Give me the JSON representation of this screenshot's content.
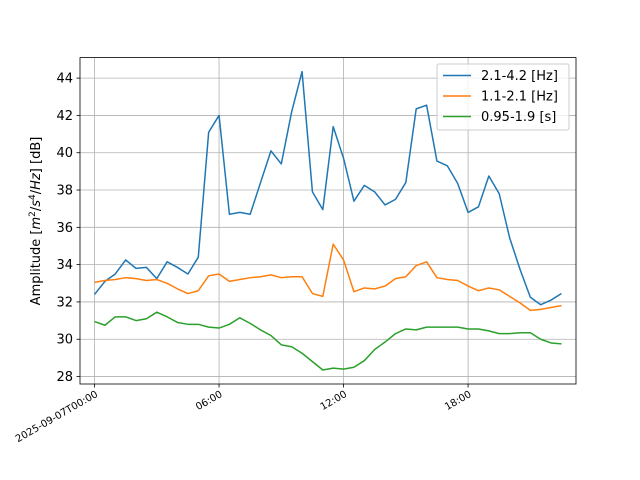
{
  "chart_data": {
    "type": "line",
    "title": "",
    "xlabel": "",
    "ylabel_parts": [
      "Amplitude [",
      "m",
      "2",
      "/",
      "s",
      "4",
      "/",
      "Hz",
      "] [dB]"
    ],
    "ylim": [
      27.6,
      45.1
    ],
    "xlim_hours": [
      -0.7,
      23.2
    ],
    "yticks": [
      28,
      30,
      32,
      34,
      36,
      38,
      40,
      42,
      44
    ],
    "xticks": [
      {
        "hour": 0,
        "label": "2025-09-07T00:00"
      },
      {
        "hour": 6,
        "label": "06:00"
      },
      {
        "hour": 12,
        "label": "12:00"
      },
      {
        "hour": 18,
        "label": "18:00"
      }
    ],
    "grid": true,
    "legend_position": "top-right",
    "x_hours": [
      0,
      0.5,
      1,
      1.5,
      2,
      2.5,
      3,
      3.5,
      4,
      4.5,
      5,
      5.5,
      6,
      6.5,
      7,
      7.5,
      8,
      8.5,
      9,
      9.5,
      10,
      10.5,
      11,
      11.5,
      12,
      12.5,
      13,
      13.5,
      14,
      14.5,
      15,
      15.5,
      16,
      16.5,
      17,
      17.5,
      18,
      18.5,
      19,
      19.5,
      20,
      20.5,
      21,
      21.5,
      22,
      22.5
    ],
    "series": [
      {
        "name": "2.1-4.2 [Hz]",
        "color": "#1f77b4",
        "values": [
          32.4,
          33.1,
          33.5,
          34.25,
          33.8,
          33.85,
          33.25,
          34.15,
          33.85,
          33.5,
          34.4,
          41.1,
          42.0,
          36.7,
          36.8,
          36.7,
          38.4,
          40.1,
          39.4,
          42.2,
          44.35,
          37.9,
          36.95,
          41.4,
          39.7,
          37.4,
          38.25,
          37.9,
          37.2,
          37.5,
          38.4,
          42.35,
          42.55,
          39.55,
          39.3,
          38.35,
          36.8,
          37.1,
          38.75,
          37.8,
          35.45,
          33.75,
          32.25,
          31.85,
          32.1,
          32.45
        ]
      },
      {
        "name": "1.1-2.1 [Hz]",
        "color": "#ff7f0e",
        "values": [
          33.05,
          33.15,
          33.2,
          33.3,
          33.25,
          33.15,
          33.2,
          33.0,
          32.7,
          32.45,
          32.6,
          33.4,
          33.5,
          33.1,
          33.2,
          33.3,
          33.35,
          33.45,
          33.3,
          33.35,
          33.35,
          32.45,
          32.3,
          35.1,
          34.25,
          32.55,
          32.75,
          32.7,
          32.85,
          33.25,
          33.35,
          33.95,
          34.15,
          33.3,
          33.2,
          33.15,
          32.85,
          32.6,
          32.75,
          32.65,
          32.3,
          31.95,
          31.55,
          31.6,
          31.7,
          31.8
        ]
      },
      {
        "name": "0.95-1.9 [s]",
        "color": "#2ca02c",
        "values": [
          30.95,
          30.75,
          31.2,
          31.2,
          31.0,
          31.1,
          31.45,
          31.2,
          30.9,
          30.8,
          30.8,
          30.65,
          30.6,
          30.8,
          31.15,
          30.85,
          30.5,
          30.2,
          29.7,
          29.6,
          29.25,
          28.8,
          28.35,
          28.45,
          28.4,
          28.5,
          28.85,
          29.45,
          29.85,
          30.3,
          30.55,
          30.5,
          30.65,
          30.65,
          30.65,
          30.65,
          30.55,
          30.55,
          30.45,
          30.3,
          30.3,
          30.35,
          30.35,
          30.0,
          29.8,
          29.75
        ]
      }
    ]
  }
}
